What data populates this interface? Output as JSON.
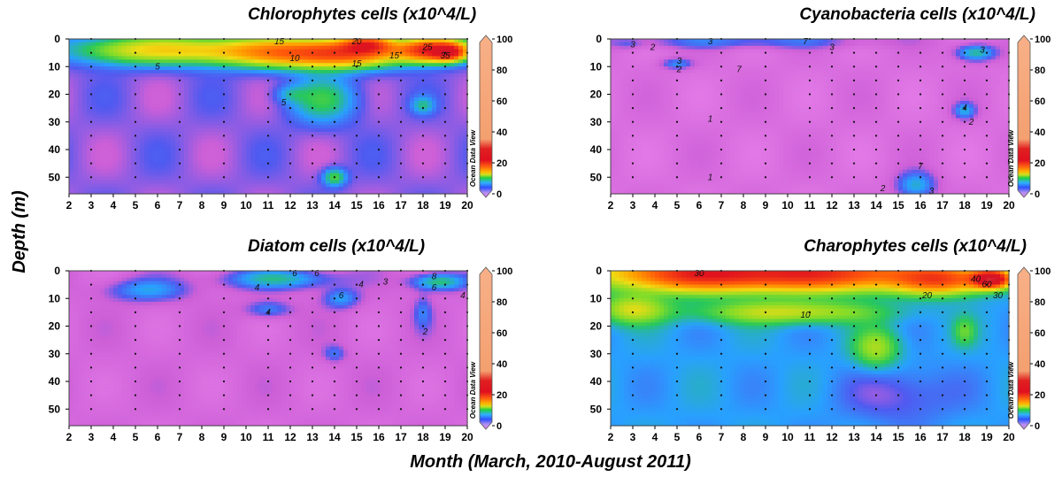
{
  "figure": {
    "ylabel": "Depth (m)",
    "xlabel": "Month (March, 2010-August 2011)",
    "watermark": "Ocean Data View"
  },
  "chart_data": [
    {
      "type": "heatmap",
      "title": "Chlorophytes cells (x10^4/L)",
      "x_ticks": [
        2,
        3,
        4,
        5,
        6,
        7,
        8,
        9,
        10,
        11,
        12,
        13,
        14,
        15,
        16,
        17,
        18,
        19,
        20
      ],
      "y_ticks": [
        0,
        10,
        20,
        30,
        40,
        50
      ],
      "xlim": [
        2,
        20
      ],
      "ylim": [
        56,
        0
      ],
      "colorbar": {
        "ticks": [
          0,
          20,
          40,
          60,
          80,
          100
        ],
        "range": [
          0,
          100
        ]
      },
      "background": 2,
      "blobs": [
        {
          "x": 4.5,
          "y": 4,
          "sx": 2.5,
          "sy": 5,
          "v": 6
        },
        {
          "x": 8,
          "y": 4,
          "sx": 3,
          "sy": 5,
          "v": 8
        },
        {
          "x": 11.5,
          "y": 5,
          "sx": 2.5,
          "sy": 5,
          "v": 10
        },
        {
          "x": 14.5,
          "y": 5,
          "sx": 2.5,
          "sy": 5,
          "v": 16
        },
        {
          "x": 15.5,
          "y": 2,
          "sx": 1.0,
          "sy": 3,
          "v": 12
        },
        {
          "x": 18.5,
          "y": 4,
          "sx": 1.5,
          "sy": 4,
          "v": 22
        },
        {
          "x": 19.2,
          "y": 5,
          "sx": 0.6,
          "sy": 2.5,
          "v": 12
        },
        {
          "x": 13.5,
          "y": 22,
          "sx": 1.5,
          "sy": 8,
          "v": 4
        },
        {
          "x": 12,
          "y": 20,
          "sx": 0.7,
          "sy": 3,
          "v": 2
        },
        {
          "x": 14,
          "y": 50,
          "sx": 0.5,
          "sy": 3,
          "v": 5
        },
        {
          "x": 18,
          "y": 24,
          "sx": 0.5,
          "sy": 3,
          "v": 3
        }
      ],
      "contour_labels": [
        {
          "x": 11.5,
          "y": 1,
          "t": "15"
        },
        {
          "x": 15,
          "y": 1,
          "t": "20"
        },
        {
          "x": 12.2,
          "y": 7,
          "t": "10"
        },
        {
          "x": 15,
          "y": 9,
          "t": "15"
        },
        {
          "x": 18.2,
          "y": 3,
          "t": "25"
        },
        {
          "x": 19,
          "y": 6,
          "t": "35"
        },
        {
          "x": 6,
          "y": 10,
          "t": "5"
        },
        {
          "x": 11.7,
          "y": 23,
          "t": "5"
        },
        {
          "x": 16.7,
          "y": 6,
          "t": "15"
        }
      ]
    },
    {
      "type": "heatmap",
      "title": "Cyanobacteria cells (x10^4/L)",
      "x_ticks": [
        2,
        3,
        4,
        5,
        6,
        7,
        8,
        9,
        10,
        11,
        12,
        13,
        14,
        15,
        16,
        17,
        18,
        19,
        20
      ],
      "y_ticks": [
        0,
        10,
        20,
        30,
        40,
        50
      ],
      "xlim": [
        2,
        20
      ],
      "ylim": [
        56,
        0
      ],
      "colorbar": {
        "ticks": [
          0,
          20,
          40,
          60,
          80,
          100
        ],
        "range": [
          0,
          100
        ]
      },
      "background": 0.6,
      "blobs": [
        {
          "x": 8,
          "y": 1,
          "sx": 6,
          "sy": 2.5,
          "v": 2.5
        },
        {
          "x": 5,
          "y": 9,
          "sx": 0.7,
          "sy": 2,
          "v": 3
        },
        {
          "x": 18.5,
          "y": 5,
          "sx": 0.9,
          "sy": 3,
          "v": 5
        },
        {
          "x": 18,
          "y": 26,
          "sx": 0.5,
          "sy": 3,
          "v": 3.5
        },
        {
          "x": 15.8,
          "y": 53,
          "sx": 0.9,
          "sy": 5,
          "v": 4
        },
        {
          "x": 2.8,
          "y": 2,
          "sx": 0.6,
          "sy": 2,
          "v": 1
        }
      ],
      "contour_labels": [
        {
          "x": 3,
          "y": 2,
          "t": "3"
        },
        {
          "x": 3.9,
          "y": 3,
          "t": "2"
        },
        {
          "x": 6.5,
          "y": 1,
          "t": "3"
        },
        {
          "x": 12,
          "y": 3,
          "t": "3"
        },
        {
          "x": 10.8,
          "y": 1,
          "t": "7"
        },
        {
          "x": 5.1,
          "y": 8,
          "t": "3"
        },
        {
          "x": 5.1,
          "y": 11,
          "t": "2"
        },
        {
          "x": 7.8,
          "y": 11,
          "t": "7"
        },
        {
          "x": 6.5,
          "y": 29,
          "t": "1"
        },
        {
          "x": 6.5,
          "y": 50,
          "t": "1"
        },
        {
          "x": 16,
          "y": 46,
          "t": "7"
        },
        {
          "x": 14.3,
          "y": 54,
          "t": "2"
        },
        {
          "x": 16.5,
          "y": 55,
          "t": "3"
        },
        {
          "x": 18.3,
          "y": 30,
          "t": "2"
        },
        {
          "x": 18,
          "y": 25,
          "t": "4"
        },
        {
          "x": 18.8,
          "y": 4,
          "t": "3"
        }
      ]
    },
    {
      "type": "heatmap",
      "title": "Diatom cells (x10^4/L)",
      "x_ticks": [
        2,
        3,
        4,
        5,
        6,
        7,
        8,
        9,
        10,
        11,
        12,
        13,
        14,
        15,
        16,
        17,
        18,
        19,
        20
      ],
      "y_ticks": [
        0,
        10,
        20,
        30,
        40,
        50
      ],
      "xlim": [
        2,
        20
      ],
      "ylim": [
        56,
        0
      ],
      "colorbar": {
        "ticks": [
          0,
          20,
          40,
          60,
          80,
          100
        ],
        "range": [
          0,
          100
        ]
      },
      "background": 1.0,
      "blobs": [
        {
          "x": 11.5,
          "y": 3,
          "sx": 2.5,
          "sy": 3.5,
          "v": 4
        },
        {
          "x": 18.7,
          "y": 4,
          "sx": 1.2,
          "sy": 3,
          "v": 5
        },
        {
          "x": 14.3,
          "y": 10,
          "sx": 0.8,
          "sy": 3.5,
          "v": 3
        },
        {
          "x": 5.5,
          "y": 7,
          "sx": 1.8,
          "sy": 4,
          "v": 3
        },
        {
          "x": 11,
          "y": 14,
          "sx": 1.0,
          "sy": 3,
          "v": 2.5
        },
        {
          "x": 14,
          "y": 30,
          "sx": 0.5,
          "sy": 3,
          "v": 2
        },
        {
          "x": 18,
          "y": 15,
          "sx": 0.4,
          "sy": 6,
          "v": 2
        }
      ],
      "contour_labels": [
        {
          "x": 10.5,
          "y": 6,
          "t": "4"
        },
        {
          "x": 12.2,
          "y": 1,
          "t": "6"
        },
        {
          "x": 13.2,
          "y": 1,
          "t": "6"
        },
        {
          "x": 14.3,
          "y": 9,
          "t": "6"
        },
        {
          "x": 15.2,
          "y": 5,
          "t": "4"
        },
        {
          "x": 16.3,
          "y": 4,
          "t": "3"
        },
        {
          "x": 11,
          "y": 15,
          "t": "4"
        },
        {
          "x": 18.5,
          "y": 2,
          "t": "8"
        },
        {
          "x": 18.5,
          "y": 6,
          "t": "6"
        },
        {
          "x": 18.1,
          "y": 22,
          "t": "2"
        },
        {
          "x": 19.8,
          "y": 9,
          "t": "4"
        }
      ]
    },
    {
      "type": "heatmap",
      "title": "Charophytes cells  (x10^4/L)",
      "x_ticks": [
        2,
        3,
        4,
        5,
        6,
        7,
        8,
        9,
        10,
        11,
        12,
        13,
        14,
        15,
        16,
        17,
        18,
        19,
        20
      ],
      "y_ticks": [
        0,
        10,
        20,
        30,
        40,
        50
      ],
      "xlim": [
        2,
        20
      ],
      "ylim": [
        56,
        0
      ],
      "colorbar": {
        "ticks": [
          0,
          20,
          40,
          60,
          80,
          100
        ],
        "range": [
          0,
          100
        ]
      },
      "background": 4,
      "blobs": [
        {
          "x": 6,
          "y": 1,
          "sx": 4,
          "sy": 6,
          "v": 18
        },
        {
          "x": 12,
          "y": 1,
          "sx": 4,
          "sy": 6,
          "v": 16
        },
        {
          "x": 17,
          "y": 3,
          "sx": 2,
          "sy": 5,
          "v": 14
        },
        {
          "x": 19.2,
          "y": 3,
          "sx": 0.8,
          "sy": 3,
          "v": 25
        },
        {
          "x": 10,
          "y": 15,
          "sx": 4,
          "sy": 4,
          "v": 6
        },
        {
          "x": 3,
          "y": 14,
          "sx": 1.5,
          "sy": 5,
          "v": 6
        },
        {
          "x": 14,
          "y": 28,
          "sx": 1.0,
          "sy": 7,
          "v": 5
        },
        {
          "x": 18,
          "y": 22,
          "sx": 0.5,
          "sy": 5,
          "v": 3
        },
        {
          "x": 15,
          "y": 45,
          "sx": 2.5,
          "sy": 10,
          "v": -2
        }
      ],
      "contour_labels": [
        {
          "x": 6,
          "y": 1,
          "t": "30"
        },
        {
          "x": 16.3,
          "y": 9,
          "t": "20"
        },
        {
          "x": 18.5,
          "y": 3,
          "t": "40"
        },
        {
          "x": 19,
          "y": 5,
          "t": "60"
        },
        {
          "x": 19.5,
          "y": 9,
          "t": "30"
        },
        {
          "x": 10.8,
          "y": 16,
          "t": "10"
        }
      ]
    }
  ]
}
